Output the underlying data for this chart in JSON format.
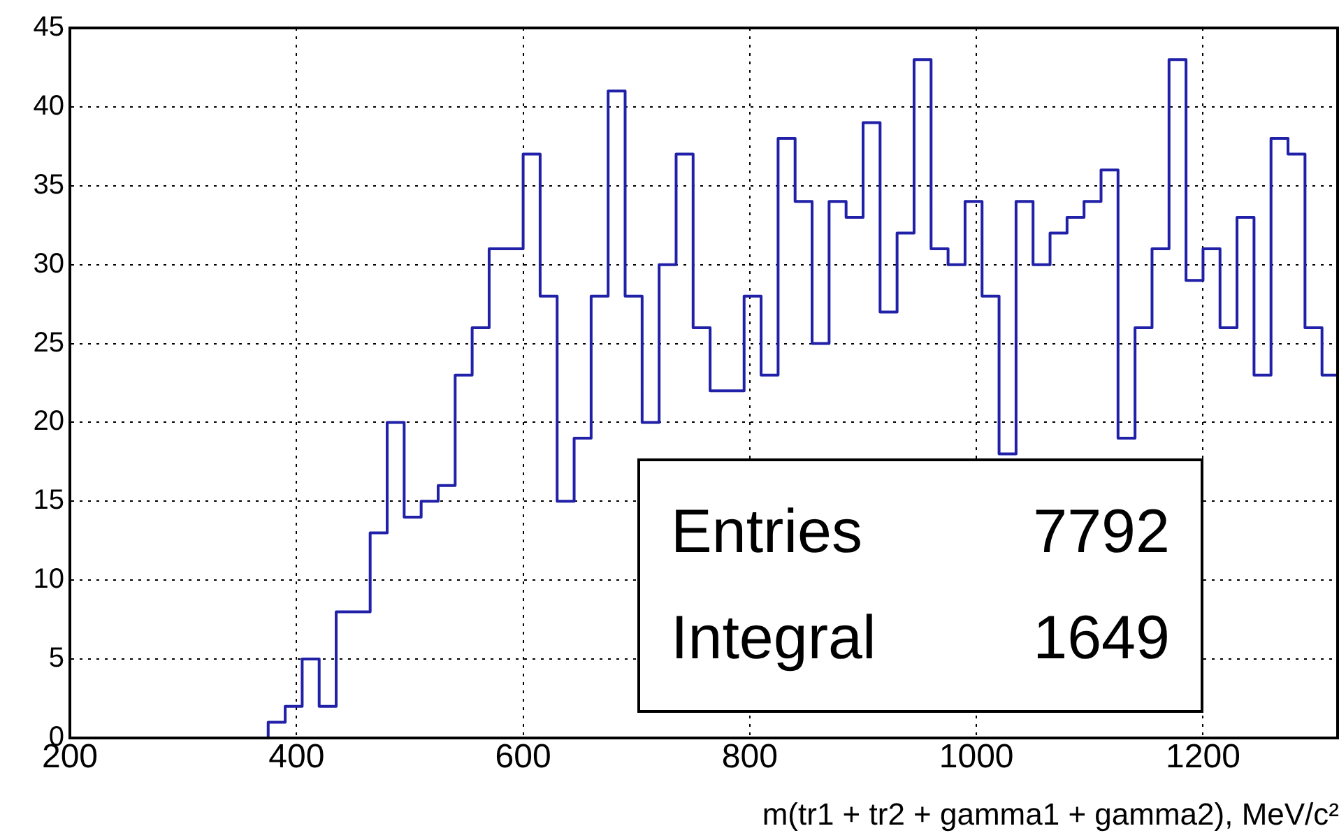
{
  "chart_data": {
    "type": "histogram",
    "xlabel": "m(tr1 + tr2 + gamma1 + gamma2), MeV/c²",
    "color": "#2020a8",
    "bins": [
      200,
      210,
      225,
      240,
      255,
      270,
      285,
      300,
      315,
      330,
      345,
      360,
      375,
      390,
      405,
      420,
      435,
      450,
      465,
      480,
      495,
      510,
      525,
      540,
      555,
      570,
      585,
      600,
      615,
      630,
      645,
      660,
      675,
      690,
      705,
      720,
      735,
      750,
      765,
      780,
      795,
      810,
      825,
      840,
      855,
      870,
      885,
      900,
      915,
      930,
      945,
      960,
      975,
      990,
      1005,
      1020,
      1035,
      1050,
      1065,
      1080,
      1095,
      1110,
      1125,
      1140,
      1155,
      1170,
      1185,
      1200,
      1215,
      1230,
      1245,
      1260,
      1275,
      1290,
      1305,
      1320
    ],
    "values": [
      0,
      0,
      0,
      0,
      0,
      0,
      0,
      0,
      0,
      0,
      0,
      0,
      1,
      2,
      5,
      2,
      8,
      8,
      13,
      20,
      14,
      15,
      16,
      23,
      26,
      31,
      31,
      37,
      28,
      15,
      19,
      28,
      41,
      28,
      20,
      30,
      37,
      26,
      22,
      22,
      28,
      23,
      38,
      34,
      25,
      34,
      33,
      39,
      27,
      32,
      43,
      31,
      30,
      34,
      28,
      18,
      34,
      30,
      32,
      33,
      34,
      36,
      19,
      26,
      31,
      43,
      29,
      31,
      26,
      33,
      23,
      38,
      37,
      26,
      23
    ],
    "xlim": [
      200,
      1320
    ],
    "xticks": [
      200,
      400,
      600,
      800,
      1000,
      1200
    ],
    "ylim": [
      0,
      45
    ],
    "yticks": [
      0,
      5,
      10,
      15,
      20,
      25,
      30,
      35,
      40,
      45
    ],
    "grid": true,
    "annotations": [
      "Entries",
      "7792",
      "Integral",
      "1649"
    ]
  }
}
